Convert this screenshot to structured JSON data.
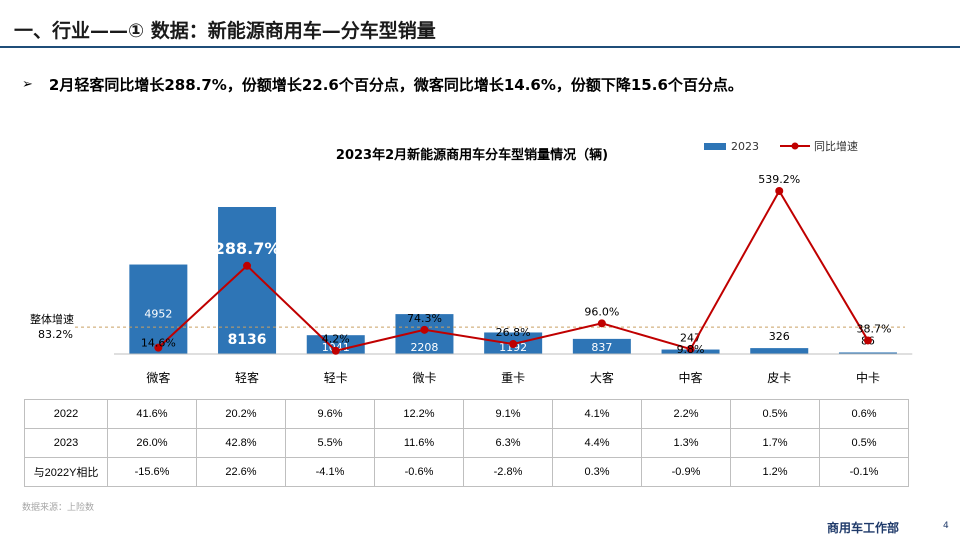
{
  "header": {
    "title": "一、行业——① 数据：新能源商用车—分车型销量"
  },
  "summary": {
    "bullet_glyph": "➢",
    "text": "2月轻客同比增长288.7%，份额增长22.6个百分点，微客同比增长14.6%，份额下降15.6个百分点。"
  },
  "chart_data": {
    "type": "bar",
    "title": "2023年2月新能源商用车分车型销量情况（辆)",
    "categories": [
      "微客",
      "轻客",
      "轻卡",
      "微卡",
      "重卡",
      "大客",
      "中客",
      "皮卡",
      "中卡"
    ],
    "series": [
      {
        "name": "2023",
        "kind": "bar",
        "color": "#2e75b6",
        "values": [
          4952,
          8136,
          1041,
          2208,
          1192,
          837,
          247,
          326,
          86
        ]
      },
      {
        "name": "同比增速",
        "kind": "line",
        "color": "#c00000",
        "values": [
          14.6,
          288.7,
          4.2,
          74.3,
          26.8,
          96.0,
          9.8,
          539.2,
          38.7
        ],
        "labels": [
          "14.6%",
          "288.7%",
          "4.2%",
          "74.3%",
          "26.8%",
          "96.0%",
          "9.8%",
          "539.2%",
          "38.7%"
        ]
      }
    ],
    "bar_labels": [
      "4952",
      "8136",
      "1041",
      "2208",
      "1192",
      "837",
      "247",
      "326",
      "86"
    ],
    "reference_line": {
      "label": "整体增速",
      "value_label": "83.2%",
      "value": 83.2,
      "color": "#c9a063"
    },
    "legend_position": "top-right",
    "grid": false
  },
  "table": {
    "rows": [
      {
        "label": "2022",
        "cells": [
          "41.6%",
          "20.2%",
          "9.6%",
          "12.2%",
          "9.1%",
          "4.1%",
          "2.2%",
          "0.5%",
          "0.6%"
        ]
      },
      {
        "label": "2023",
        "cells": [
          "26.0%",
          "42.8%",
          "5.5%",
          "11.6%",
          "6.3%",
          "4.4%",
          "1.3%",
          "1.7%",
          "0.5%"
        ]
      },
      {
        "label": "与2022Y相比",
        "cells": [
          "-15.6%",
          "22.6%",
          "-4.1%",
          "-0.6%",
          "-2.8%",
          "0.3%",
          "-0.9%",
          "1.2%",
          "-0.1%"
        ]
      }
    ]
  },
  "footer": {
    "source": "数据来源：上险数",
    "department": "商用车工作部",
    "page_number": "4"
  }
}
